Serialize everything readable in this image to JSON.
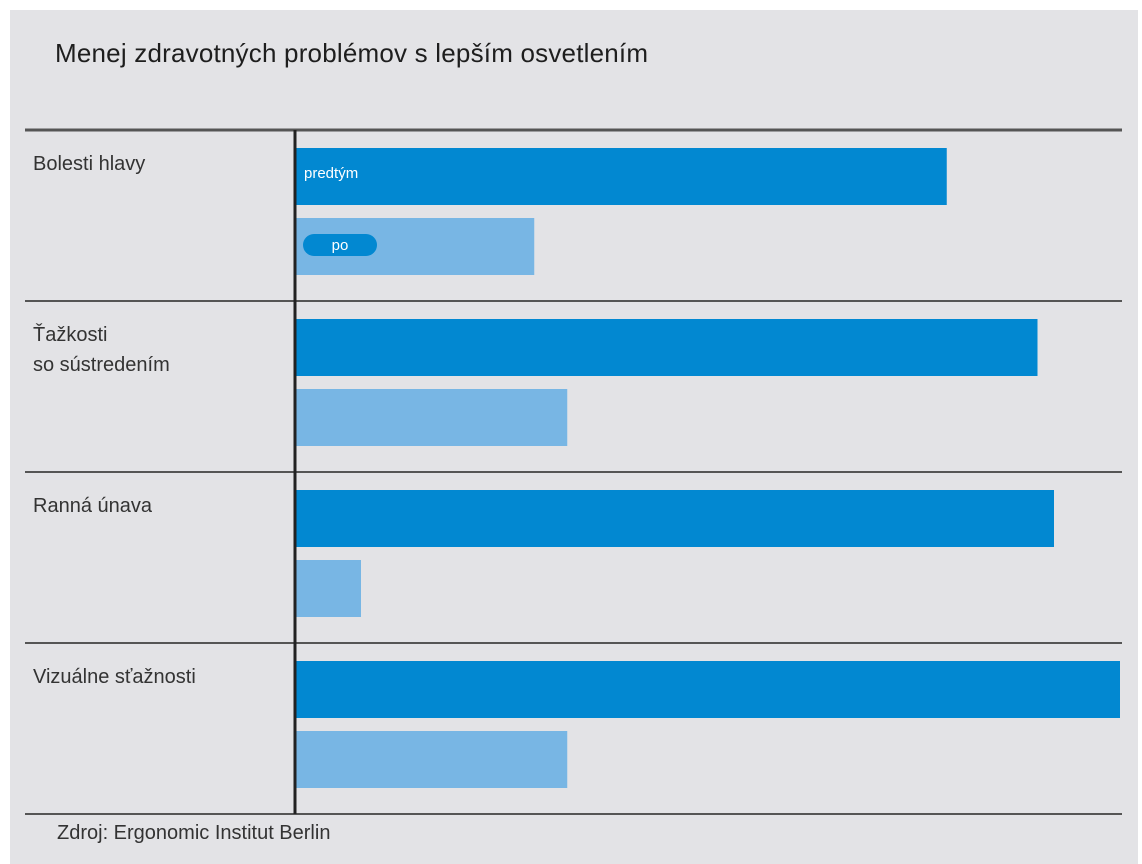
{
  "title": "Menej zdravotných problémov s lepším osvetlením",
  "source": "Zdroj: Ergonomic Institut Berlin",
  "colors": {
    "before": "#0288d1",
    "after": "#78b6e4",
    "background": "#e3e3e6",
    "divider": "#555555"
  },
  "chart_data": {
    "type": "bar",
    "orientation": "horizontal",
    "title": "Menej zdravotných problémov s lepším osvetlením",
    "categories": [
      [
        "Bolesti hlavy"
      ],
      [
        "Ťažkosti",
        "so sústredením"
      ],
      [
        "Ranná únava"
      ],
      [
        "Vizuálne sťažnosti"
      ]
    ],
    "series": [
      {
        "name": "predtým",
        "values": [
          79,
          90,
          92,
          100
        ]
      },
      {
        "name": "po",
        "values": [
          29,
          33,
          8,
          33
        ]
      }
    ],
    "xlim": [
      0,
      100
    ],
    "grid": false,
    "legend": "inline labels on first category bars"
  }
}
